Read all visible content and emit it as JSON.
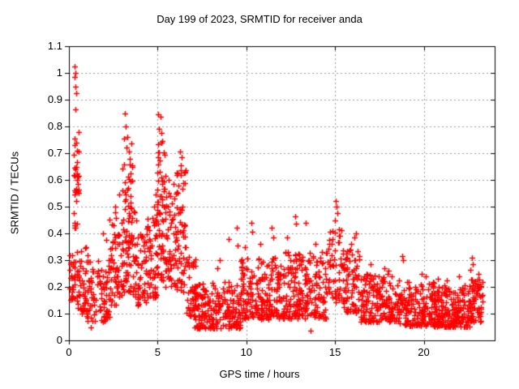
{
  "window": {
    "background": "#ffffff"
  },
  "chart_data": {
    "type": "scatter",
    "title": "Day 199 of 2023, SRMTID for receiver anda",
    "xlabel": "GPS time / hours",
    "ylabel": "SRMTID / TECUs",
    "series_name": "SRMTID",
    "xlim": [
      0,
      24
    ],
    "ylim": [
      0,
      1.1
    ],
    "x_ticks": {
      "values": [
        0,
        5,
        10,
        15,
        20
      ],
      "labels": [
        "0",
        "5",
        "10",
        "15",
        "20"
      ]
    },
    "y_ticks": {
      "values": [
        0,
        0.1,
        0.2,
        0.3,
        0.4,
        0.5,
        0.6,
        0.7,
        0.8,
        0.9,
        1.0,
        1.1
      ],
      "labels": [
        "0",
        "0.1",
        "0.2",
        "0.3",
        "0.4",
        "0.5",
        "0.6",
        "0.7",
        "0.8",
        "0.9",
        "1",
        "1.1"
      ]
    },
    "grid": true,
    "legend": "none",
    "grid_color": "#9c9c9c",
    "frame_color": "#000000",
    "text_color": "#000000",
    "marker": {
      "shape": "plus",
      "color": "#ff0000",
      "size": 7,
      "stroke_width": 1.5
    },
    "approx_point_count": 2070,
    "seed": 199,
    "density_segments_columns": [
      "x_start_hours",
      "x_end_hours",
      "count",
      "y_min_TECUs",
      "y_max_TECUs",
      "bias_exponent"
    ],
    "density_segments": [
      [
        0.05,
        0.35,
        30,
        0.15,
        0.33,
        1.0
      ],
      [
        0.25,
        0.55,
        20,
        0.42,
        0.8,
        1.3
      ],
      [
        0.4,
        1.1,
        45,
        0.1,
        0.35,
        1.4
      ],
      [
        1.0,
        2.3,
        90,
        0.07,
        0.3,
        1.4
      ],
      [
        2.3,
        3.0,
        60,
        0.13,
        0.48,
        1.4
      ],
      [
        3.0,
        3.7,
        80,
        0.18,
        0.66,
        1.2
      ],
      [
        3.6,
        4.4,
        55,
        0.13,
        0.4,
        1.4
      ],
      [
        4.4,
        4.95,
        50,
        0.16,
        0.46,
        1.3
      ],
      [
        4.95,
        5.45,
        65,
        0.22,
        0.74,
        1.15
      ],
      [
        5.45,
        6.1,
        55,
        0.2,
        0.56,
        1.25
      ],
      [
        6.05,
        6.6,
        60,
        0.18,
        0.64,
        1.2
      ],
      [
        6.6,
        7.15,
        45,
        0.09,
        0.33,
        1.4
      ],
      [
        7.1,
        9.7,
        210,
        0.045,
        0.22,
        1.5
      ],
      [
        9.7,
        12.1,
        200,
        0.08,
        0.31,
        1.5
      ],
      [
        12.1,
        14.5,
        200,
        0.08,
        0.33,
        1.5
      ],
      [
        14.5,
        15.45,
        55,
        0.14,
        0.43,
        1.25
      ],
      [
        15.45,
        16.45,
        80,
        0.1,
        0.34,
        1.4
      ],
      [
        16.45,
        18.65,
        170,
        0.07,
        0.25,
        1.5
      ],
      [
        18.65,
        20.6,
        160,
        0.055,
        0.22,
        1.5
      ],
      [
        20.6,
        22.6,
        190,
        0.05,
        0.21,
        1.5
      ],
      [
        22.6,
        23.35,
        70,
        0.07,
        0.23,
        1.4
      ]
    ],
    "peak_points": [
      [
        0.33,
        1.025
      ],
      [
        0.35,
        1.0
      ],
      [
        0.34,
        0.985
      ],
      [
        0.38,
        0.95
      ],
      [
        0.4,
        0.925
      ],
      [
        0.36,
        0.865
      ],
      [
        0.3,
        0.755
      ],
      [
        0.42,
        0.74
      ],
      [
        0.33,
        0.73
      ],
      [
        0.45,
        0.71
      ],
      [
        0.28,
        0.695
      ],
      [
        0.4,
        0.65
      ],
      [
        0.36,
        0.64
      ],
      [
        0.47,
        0.625
      ],
      [
        0.31,
        0.615
      ],
      [
        0.44,
        0.6
      ],
      [
        0.5,
        0.585
      ],
      [
        0.38,
        0.555
      ],
      [
        1.25,
        0.05
      ],
      [
        1.9,
        0.4
      ],
      [
        2.1,
        0.375
      ],
      [
        2.6,
        0.5
      ],
      [
        2.85,
        0.545
      ],
      [
        3.1,
        0.755
      ],
      [
        3.15,
        0.85
      ],
      [
        3.18,
        0.8
      ],
      [
        3.3,
        0.76
      ],
      [
        3.25,
        0.72
      ],
      [
        3.4,
        0.705
      ],
      [
        3.45,
        0.68
      ],
      [
        3.5,
        0.735
      ],
      [
        3.8,
        0.45
      ],
      [
        4.8,
        0.5
      ],
      [
        4.9,
        0.545
      ],
      [
        5.05,
        0.845
      ],
      [
        5.15,
        0.835
      ],
      [
        5.08,
        0.79
      ],
      [
        5.2,
        0.775
      ],
      [
        5.25,
        0.745
      ],
      [
        5.6,
        0.6
      ],
      [
        5.9,
        0.585
      ],
      [
        6.25,
        0.705
      ],
      [
        6.35,
        0.685
      ],
      [
        6.3,
        0.655
      ],
      [
        8.35,
        0.27
      ],
      [
        8.5,
        0.3
      ],
      [
        9.0,
        0.38
      ],
      [
        9.45,
        0.42
      ],
      [
        9.5,
        0.355
      ],
      [
        9.9,
        0.35
      ],
      [
        10.3,
        0.44
      ],
      [
        10.35,
        0.405
      ],
      [
        10.8,
        0.36
      ],
      [
        11.45,
        0.42
      ],
      [
        11.5,
        0.385
      ],
      [
        12.3,
        0.385
      ],
      [
        12.75,
        0.465
      ],
      [
        12.8,
        0.435
      ],
      [
        13.35,
        0.44
      ],
      [
        13.6,
        0.035
      ],
      [
        13.9,
        0.36
      ],
      [
        15.0,
        0.45
      ],
      [
        15.05,
        0.52
      ],
      [
        15.1,
        0.5
      ],
      [
        15.15,
        0.475
      ],
      [
        15.9,
        0.36
      ],
      [
        16.1,
        0.385
      ],
      [
        16.2,
        0.4
      ],
      [
        17.0,
        0.285
      ],
      [
        17.8,
        0.27
      ],
      [
        18.0,
        0.26
      ],
      [
        18.8,
        0.315
      ],
      [
        18.85,
        0.3
      ],
      [
        19.9,
        0.25
      ],
      [
        20.1,
        0.24
      ],
      [
        20.8,
        0.23
      ],
      [
        21.3,
        0.225
      ],
      [
        22.0,
        0.24
      ],
      [
        22.65,
        0.265
      ],
      [
        22.7,
        0.31
      ],
      [
        22.75,
        0.285
      ],
      [
        23.1,
        0.25
      ],
      [
        23.3,
        0.17
      ]
    ]
  }
}
